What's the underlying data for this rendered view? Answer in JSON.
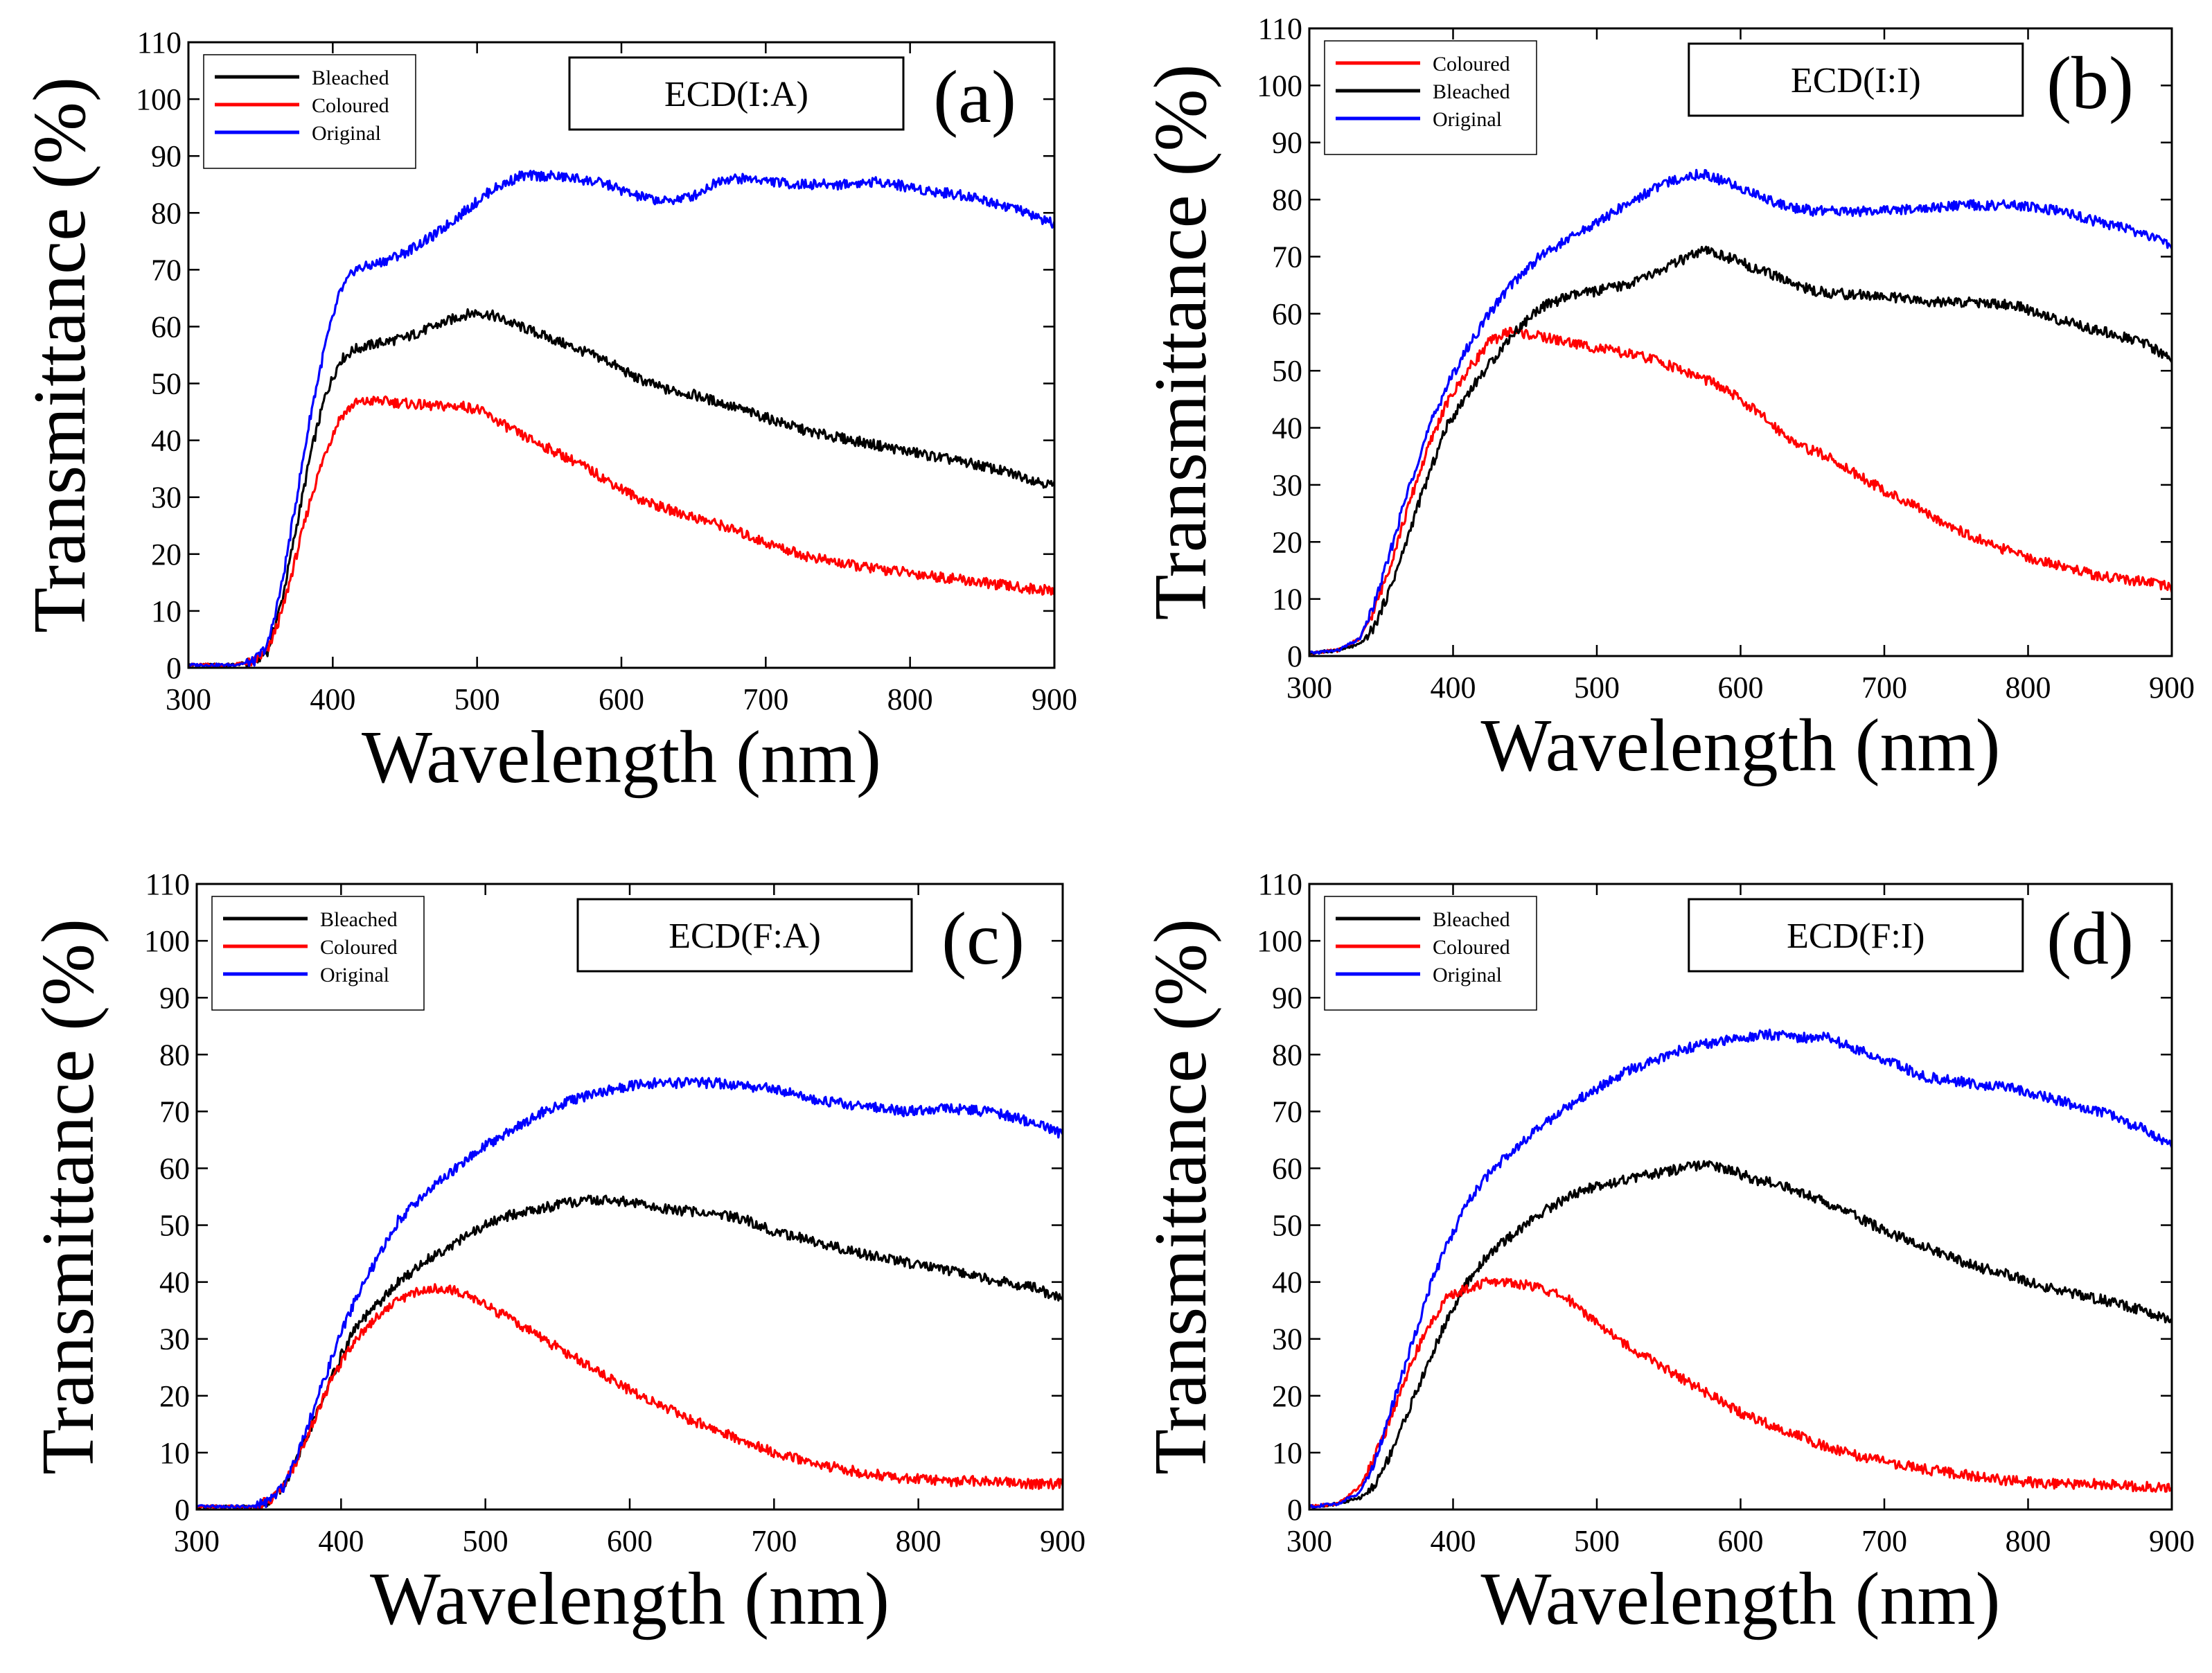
{
  "figure": {
    "background": "#ffffff",
    "colors": {
      "Bleached": "#000000",
      "Coloured": "#ff0000",
      "Original": "#0000ff",
      "axis": "#000000"
    }
  },
  "chart_data": [
    {
      "id": "a",
      "panel_label": "(a)",
      "device_label": "ECD(I:A)",
      "type": "line",
      "xlabel": "Wavelength (nm)",
      "ylabel": "Transmittance (%)",
      "xlim": [
        300,
        900
      ],
      "ylim": [
        0,
        110
      ],
      "xticks": [
        300,
        400,
        500,
        600,
        700,
        800,
        900
      ],
      "yticks": [
        0,
        10,
        20,
        30,
        40,
        50,
        60,
        70,
        80,
        90,
        100,
        110
      ],
      "legend": [
        "Bleached",
        "Coloured",
        "Original"
      ],
      "series": [
        {
          "name": "Bleached",
          "color": "#000000",
          "x": [
            300,
            330,
            345,
            355,
            365,
            375,
            385,
            395,
            405,
            415,
            430,
            450,
            470,
            490,
            500,
            510,
            530,
            550,
            570,
            590,
            610,
            630,
            650,
            670,
            700,
            730,
            760,
            790,
            820,
            850,
            880,
            900
          ],
          "y": [
            0.5,
            0.5,
            1,
            3,
            12,
            25,
            38,
            48,
            54,
            56,
            57,
            58,
            60,
            62,
            62.5,
            62,
            60,
            58,
            56,
            54,
            51,
            49,
            48,
            46.5,
            44,
            41.5,
            40,
            38.5,
            37,
            35.5,
            33.5,
            32
          ]
        },
        {
          "name": "Coloured",
          "color": "#ff0000",
          "x": [
            300,
            330,
            345,
            355,
            365,
            375,
            385,
            395,
            405,
            415,
            430,
            450,
            470,
            490,
            500,
            510,
            530,
            550,
            570,
            590,
            610,
            630,
            650,
            670,
            700,
            730,
            760,
            790,
            820,
            850,
            880,
            900
          ],
          "y": [
            0.5,
            0.5,
            1,
            3,
            10,
            20,
            30,
            38,
            44,
            46.5,
            47,
            46.5,
            46,
            46,
            45.5,
            44,
            41,
            38.5,
            36,
            33,
            30,
            28,
            26.5,
            25,
            22,
            19.5,
            18,
            17,
            16,
            15,
            14,
            13.5
          ]
        },
        {
          "name": "Original",
          "color": "#0000ff",
          "x": [
            300,
            330,
            345,
            355,
            365,
            375,
            385,
            395,
            405,
            415,
            430,
            450,
            470,
            490,
            510,
            530,
            550,
            570,
            590,
            610,
            630,
            650,
            670,
            690,
            720,
            750,
            780,
            810,
            840,
            870,
            900
          ],
          "y": [
            0.5,
            0.5,
            1,
            4,
            15,
            30,
            45,
            57,
            66,
            70,
            71,
            73,
            76,
            80,
            84,
            86.5,
            86.5,
            86,
            85,
            83,
            82,
            83,
            86,
            86,
            85,
            85,
            85.5,
            84,
            83,
            81,
            78
          ]
        }
      ]
    },
    {
      "id": "b",
      "panel_label": "(b)",
      "device_label": "ECD(I:I)",
      "type": "line",
      "xlabel": "Wavelength (nm)",
      "ylabel": "Transmittance (%)",
      "xlim": [
        300,
        900
      ],
      "ylim": [
        0,
        110
      ],
      "xticks": [
        300,
        400,
        500,
        600,
        700,
        800,
        900
      ],
      "yticks": [
        0,
        10,
        20,
        30,
        40,
        50,
        60,
        70,
        80,
        90,
        100,
        110
      ],
      "legend": [
        "Coloured",
        "Bleached",
        "Original"
      ],
      "series": [
        {
          "name": "Coloured",
          "color": "#ff0000",
          "x": [
            300,
            320,
            335,
            345,
            355,
            365,
            375,
            385,
            395,
            410,
            425,
            440,
            460,
            480,
            500,
            520,
            540,
            560,
            580,
            600,
            620,
            640,
            660,
            680,
            700,
            730,
            760,
            790,
            820,
            850,
            880,
            900
          ],
          "y": [
            0.5,
            1,
            3,
            8,
            15,
            23,
            31,
            38,
            44,
            50,
            55,
            57,
            56,
            55,
            54,
            53,
            52,
            50,
            48,
            45,
            41,
            37,
            35,
            32,
            29,
            25,
            21,
            18,
            16,
            14,
            13,
            12
          ]
        },
        {
          "name": "Bleached",
          "color": "#000000",
          "x": [
            300,
            320,
            335,
            345,
            355,
            365,
            375,
            385,
            395,
            410,
            425,
            440,
            460,
            480,
            500,
            520,
            540,
            560,
            575,
            590,
            610,
            630,
            650,
            670,
            700,
            730,
            760,
            790,
            820,
            850,
            880,
            900
          ],
          "y": [
            0.5,
            1,
            2,
            5,
            11,
            18,
            26,
            33,
            40,
            46,
            51,
            56,
            61,
            63,
            64,
            65,
            67,
            69.5,
            71,
            70,
            68,
            66,
            64,
            63.5,
            63,
            62,
            62,
            61.5,
            59,
            57,
            55,
            52
          ]
        },
        {
          "name": "Original",
          "color": "#0000ff",
          "x": [
            300,
            320,
            335,
            345,
            355,
            365,
            375,
            385,
            395,
            410,
            425,
            440,
            460,
            480,
            500,
            520,
            540,
            560,
            575,
            590,
            610,
            630,
            650,
            670,
            700,
            730,
            760,
            790,
            820,
            850,
            880,
            900
          ],
          "y": [
            0.5,
            1,
            3,
            9,
            17,
            26,
            34,
            41,
            47,
            54,
            60,
            65,
            70,
            73,
            76,
            79,
            82,
            84,
            84.5,
            83,
            81,
            79,
            78,
            78,
            78,
            78.5,
            79,
            79,
            78,
            76,
            74,
            72
          ]
        }
      ]
    },
    {
      "id": "c",
      "panel_label": "(c)",
      "device_label": "ECD(F:A)",
      "type": "line",
      "xlabel": "Wavelength (nm)",
      "ylabel": "Transmittance (%)",
      "xlim": [
        300,
        900
      ],
      "ylim": [
        0,
        110
      ],
      "xticks": [
        300,
        400,
        500,
        600,
        700,
        800,
        900
      ],
      "yticks": [
        0,
        10,
        20,
        30,
        40,
        50,
        60,
        70,
        80,
        90,
        100,
        110
      ],
      "legend": [
        "Bleached",
        "Coloured",
        "Original"
      ],
      "series": [
        {
          "name": "Bleached",
          "color": "#000000",
          "x": [
            300,
            340,
            350,
            360,
            370,
            380,
            390,
            400,
            410,
            425,
            440,
            460,
            480,
            500,
            520,
            540,
            560,
            580,
            600,
            620,
            640,
            660,
            680,
            700,
            730,
            760,
            790,
            820,
            850,
            880,
            900
          ],
          "y": [
            0.5,
            0.5,
            1.5,
            4,
            9,
            15,
            21,
            27,
            32,
            36,
            40,
            44,
            47,
            50,
            52,
            53,
            54,
            54.5,
            54,
            53,
            52.5,
            52,
            51,
            49,
            47,
            45,
            43.5,
            42,
            40.5,
            39,
            37
          ]
        },
        {
          "name": "Coloured",
          "color": "#ff0000",
          "x": [
            300,
            340,
            350,
            360,
            370,
            380,
            390,
            400,
            410,
            425,
            440,
            455,
            470,
            485,
            500,
            520,
            540,
            560,
            580,
            600,
            620,
            640,
            660,
            680,
            700,
            730,
            760,
            790,
            820,
            850,
            880,
            900
          ],
          "y": [
            0.5,
            0.5,
            1.5,
            4,
            9,
            15,
            21,
            26,
            30,
            34,
            37,
            38.5,
            39,
            38,
            36,
            33,
            30,
            27,
            24,
            21,
            18.5,
            16,
            14,
            12,
            10,
            8,
            6.5,
            5.5,
            5,
            5,
            4.5,
            4.5
          ]
        },
        {
          "name": "Original",
          "color": "#0000ff",
          "x": [
            300,
            340,
            350,
            360,
            370,
            380,
            390,
            400,
            410,
            425,
            440,
            460,
            480,
            500,
            520,
            540,
            560,
            580,
            600,
            620,
            640,
            660,
            680,
            700,
            730,
            760,
            790,
            820,
            850,
            880,
            900
          ],
          "y": [
            0.5,
            0.5,
            1.5,
            4,
            10,
            17,
            24,
            31,
            37,
            44,
            51,
            56,
            60,
            64,
            67,
            70,
            72,
            73.5,
            74.5,
            75,
            75,
            75,
            74.5,
            74,
            72,
            71,
            70,
            70.5,
            70,
            68,
            66
          ]
        }
      ]
    },
    {
      "id": "d",
      "panel_label": "(d)",
      "device_label": "ECD(F:I)",
      "type": "line",
      "xlabel": "Wavelength (nm)",
      "ylabel": "Transmittance (%)",
      "xlim": [
        300,
        900
      ],
      "ylim": [
        0,
        110
      ],
      "xticks": [
        300,
        400,
        500,
        600,
        700,
        800,
        900
      ],
      "yticks": [
        0,
        10,
        20,
        30,
        40,
        50,
        60,
        70,
        80,
        90,
        100,
        110
      ],
      "legend": [
        "Bleached",
        "Coloured",
        "Original"
      ],
      "series": [
        {
          "name": "Bleached",
          "color": "#000000",
          "x": [
            300,
            320,
            335,
            345,
            355,
            365,
            375,
            385,
            395,
            410,
            425,
            440,
            460,
            480,
            500,
            520,
            540,
            560,
            575,
            590,
            610,
            630,
            650,
            670,
            700,
            730,
            760,
            790,
            820,
            850,
            880,
            900
          ],
          "y": [
            0.5,
            1,
            2,
            4,
            9,
            15,
            21,
            27,
            33,
            40,
            45,
            48,
            52,
            55,
            57,
            58,
            59,
            60,
            60.5,
            60,
            58,
            57,
            55,
            53,
            49,
            46,
            43,
            41,
            38.5,
            37,
            35,
            33
          ]
        },
        {
          "name": "Coloured",
          "color": "#ff0000",
          "x": [
            300,
            320,
            335,
            345,
            355,
            365,
            375,
            385,
            395,
            410,
            425,
            440,
            460,
            480,
            500,
            520,
            540,
            560,
            580,
            600,
            620,
            640,
            660,
            680,
            700,
            730,
            760,
            790,
            820,
            850,
            880,
            900
          ],
          "y": [
            0.5,
            1,
            4,
            9,
            15,
            22,
            28,
            33,
            37,
            39,
            40,
            40,
            39,
            37,
            33,
            29,
            26,
            23,
            20,
            17,
            15,
            13,
            11,
            9.5,
            8.5,
            7,
            6,
            5,
            4.5,
            4.5,
            4,
            4
          ]
        },
        {
          "name": "Original",
          "color": "#0000ff",
          "x": [
            300,
            320,
            335,
            345,
            355,
            365,
            375,
            385,
            395,
            410,
            425,
            440,
            460,
            480,
            500,
            520,
            540,
            560,
            580,
            600,
            620,
            640,
            660,
            680,
            700,
            730,
            760,
            790,
            820,
            850,
            880,
            900
          ],
          "y": [
            0.5,
            1,
            3,
            8,
            16,
            24,
            32,
            40,
            46,
            54,
            59,
            63,
            67,
            71,
            74,
            77,
            79,
            81,
            82,
            83,
            83.5,
            83,
            83,
            81,
            79,
            76,
            75,
            74,
            72,
            70,
            67,
            64
          ]
        }
      ]
    }
  ]
}
